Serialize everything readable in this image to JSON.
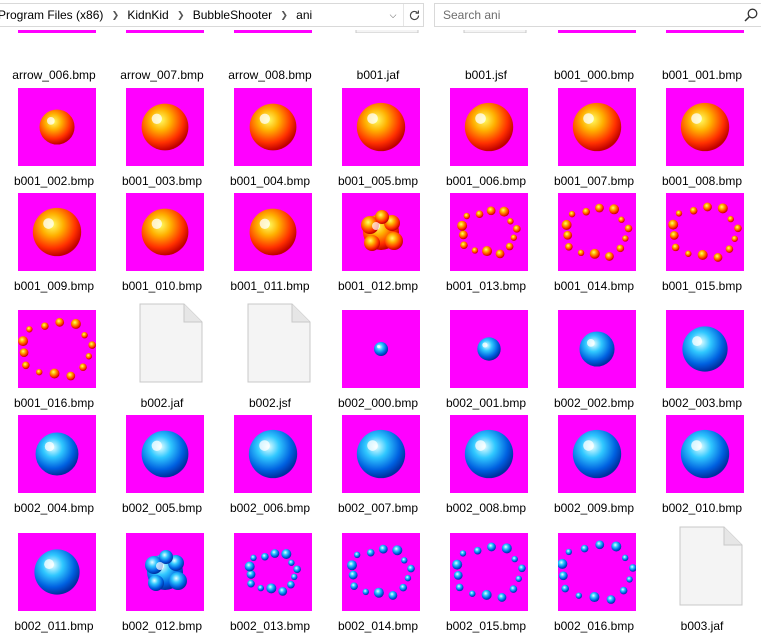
{
  "address_bar": {
    "path": [
      "Program Files (x86)",
      "KidnKid",
      "BubbleShooter",
      "ani"
    ]
  },
  "search": {
    "placeholder": "Search ani"
  },
  "colors": {
    "magenta": "#ff00ff"
  },
  "rows": [
    {
      "items": [
        {
          "name": "arrow_006.bmp",
          "kind": "blank"
        },
        {
          "name": "arrow_007.bmp",
          "kind": "blank"
        },
        {
          "name": "arrow_008.bmp",
          "kind": "blank"
        },
        {
          "name": "b001.jaf",
          "kind": "file"
        },
        {
          "name": "b001.jsf",
          "kind": "file"
        },
        {
          "name": "b001_000.bmp",
          "kind": "blank"
        },
        {
          "name": "b001_001.bmp",
          "kind": "blank"
        }
      ]
    },
    {
      "items": [
        {
          "name": "b001_002.bmp",
          "kind": "ball",
          "color": "red",
          "scale": 0.45
        },
        {
          "name": "b001_003.bmp",
          "kind": "ball",
          "color": "red",
          "scale": 0.6
        },
        {
          "name": "b001_004.bmp",
          "kind": "ball",
          "color": "red",
          "scale": 0.6
        },
        {
          "name": "b001_005.bmp",
          "kind": "ball",
          "color": "red",
          "scale": 0.62
        },
        {
          "name": "b001_006.bmp",
          "kind": "ball",
          "color": "red",
          "scale": 0.62
        },
        {
          "name": "b001_007.bmp",
          "kind": "ball",
          "color": "red",
          "scale": 0.62
        },
        {
          "name": "b001_008.bmp",
          "kind": "ball",
          "color": "red",
          "scale": 0.62
        }
      ]
    },
    {
      "items": [
        {
          "name": "b001_009.bmp",
          "kind": "ball",
          "color": "red",
          "scale": 0.62
        },
        {
          "name": "b001_010.bmp",
          "kind": "ball",
          "color": "red",
          "scale": 0.6
        },
        {
          "name": "b001_011.bmp",
          "kind": "ball",
          "color": "red",
          "scale": 0.6
        },
        {
          "name": "b001_012.bmp",
          "kind": "splat",
          "color": "red"
        },
        {
          "name": "b001_013.bmp",
          "kind": "ring",
          "color": "red",
          "spread": 0.35
        },
        {
          "name": "b001_014.bmp",
          "kind": "ring",
          "color": "red",
          "spread": 0.4
        },
        {
          "name": "b001_015.bmp",
          "kind": "ring",
          "color": "red",
          "spread": 0.42
        }
      ]
    },
    {
      "items": [
        {
          "name": "b001_016.bmp",
          "kind": "ring",
          "color": "red",
          "spread": 0.45
        },
        {
          "name": "b002.jaf",
          "kind": "file"
        },
        {
          "name": "b002.jsf",
          "kind": "file"
        },
        {
          "name": "b002_000.bmp",
          "kind": "ball",
          "color": "blue",
          "scale": 0.18
        },
        {
          "name": "b002_001.bmp",
          "kind": "ball",
          "color": "blue",
          "scale": 0.3
        },
        {
          "name": "b002_002.bmp",
          "kind": "ball",
          "color": "blue",
          "scale": 0.45
        },
        {
          "name": "b002_003.bmp",
          "kind": "ball",
          "color": "blue",
          "scale": 0.58
        }
      ]
    },
    {
      "items": [
        {
          "name": "b002_004.bmp",
          "kind": "ball",
          "color": "blue",
          "scale": 0.55
        },
        {
          "name": "b002_005.bmp",
          "kind": "ball",
          "color": "blue",
          "scale": 0.6
        },
        {
          "name": "b002_006.bmp",
          "kind": "ball",
          "color": "blue",
          "scale": 0.62
        },
        {
          "name": "b002_007.bmp",
          "kind": "ball",
          "color": "blue",
          "scale": 0.62
        },
        {
          "name": "b002_008.bmp",
          "kind": "ball",
          "color": "blue",
          "scale": 0.62
        },
        {
          "name": "b002_009.bmp",
          "kind": "ball",
          "color": "blue",
          "scale": 0.62
        },
        {
          "name": "b002_010.bmp",
          "kind": "ball",
          "color": "blue",
          "scale": 0.62
        }
      ]
    },
    {
      "items": [
        {
          "name": "b002_011.bmp",
          "kind": "ball",
          "color": "blue",
          "scale": 0.58
        },
        {
          "name": "b002_012.bmp",
          "kind": "splat",
          "color": "blue"
        },
        {
          "name": "b002_013.bmp",
          "kind": "ring",
          "color": "blue",
          "spread": 0.3
        },
        {
          "name": "b002_014.bmp",
          "kind": "ring",
          "color": "blue",
          "spread": 0.38
        },
        {
          "name": "b002_015.bmp",
          "kind": "ring",
          "color": "blue",
          "spread": 0.42
        },
        {
          "name": "b002_016.bmp",
          "kind": "ring",
          "color": "blue",
          "spread": 0.46
        },
        {
          "name": "b003.jaf",
          "kind": "file"
        }
      ]
    }
  ]
}
